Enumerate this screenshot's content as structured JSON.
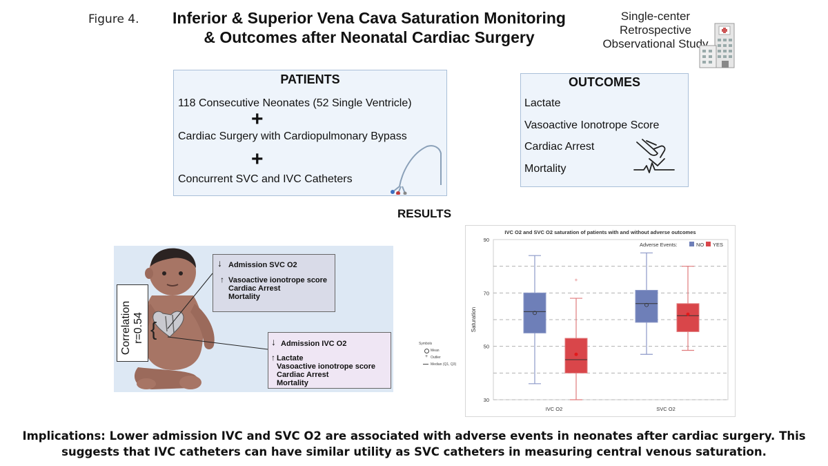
{
  "header": {
    "figure_label": "Figure 4.",
    "title_line1": "Inferior & Superior Vena Cava Saturation Monitoring",
    "title_line2": "& Outcomes after Neonatal Cardiac Surgery",
    "study_line1": "Single-center",
    "study_line2": "Retrospective",
    "study_line3": "Observational Study",
    "study_icon": "hospital-icon"
  },
  "patients": {
    "heading": "PATIENTS",
    "items": [
      "118 Consecutive Neonates (52 Single Ventricle)",
      "Cardiac Surgery with Cardiopulmonary Bypass",
      "Concurrent SVC and IVC Catheters"
    ],
    "plus": "+",
    "catheter_icon": "catheter-icon"
  },
  "outcomes": {
    "heading": "OUTCOMES",
    "items": [
      "Lactate",
      "Vasoactive Ionotrope Score",
      "Cardiac Arrest",
      "Mortality"
    ],
    "cpr_icon": "cpr-hands-icon"
  },
  "results_label": "RESULTS",
  "infant_panel": {
    "svc_callout": {
      "head": "Admission SVC  O2",
      "items": [
        "Vasoactive ionotrope score",
        "Cardiac Arrest",
        "Mortality"
      ]
    },
    "ivc_callout": {
      "head": "Admission IVC  O2",
      "items": [
        "Lactate",
        "Vasoactive ionotrope score",
        "Cardiac Arrest",
        "Mortality"
      ]
    },
    "correlation_line1": "Correlation",
    "correlation_line2": "r=0.54",
    "down_arrow": "↓",
    "up_arrow": "↑"
  },
  "chart_data": {
    "type": "box",
    "title": "IVC O2 and SVC O2 saturation of patients with and without adverse outcomes",
    "ylabel": "Saturation",
    "xlabel": "",
    "categories": [
      "IVC O2",
      "SVC O2"
    ],
    "ylim": [
      30,
      90
    ],
    "yticks": [
      30,
      50,
      70,
      90
    ],
    "gridlines": [
      30,
      40,
      50,
      60,
      70,
      80
    ],
    "legend_title": "Adverse Events:",
    "legend_position": "top-right",
    "series": [
      {
        "name": "NO",
        "color": "#6e7fb8",
        "boxes": [
          {
            "whisker_low": 36,
            "q1": 55,
            "median": 63,
            "q3": 70,
            "whisker_high": 84,
            "mean": 62.5,
            "outliers": []
          },
          {
            "whisker_low": 47,
            "q1": 59,
            "median": 66,
            "q3": 71,
            "whisker_high": 85,
            "mean": 65.5,
            "outliers": []
          }
        ]
      },
      {
        "name": "YES",
        "color": "#d9464a",
        "boxes": [
          {
            "whisker_low": 30,
            "q1": 40,
            "median": 45,
            "q3": 53,
            "whisker_high": 68,
            "mean": 47,
            "outliers": [
              75
            ]
          },
          {
            "whisker_low": 48.5,
            "q1": 55.5,
            "median": 61.5,
            "q3": 66,
            "whisker_high": 80,
            "mean": 62,
            "outliers": []
          }
        ]
      }
    ]
  },
  "symbols_legend": {
    "title": "Symbols",
    "items": [
      "Mean",
      "Outlier",
      "Median (Q1, Q3)"
    ]
  },
  "implications": {
    "line1": "Implications:  Lower admission IVC and SVC O2 are associated with adverse events in neonates after cardiac surgery.  This",
    "line2": "suggests that IVC catheters can have similar utility as SVC catheters in measuring central venous saturation."
  }
}
